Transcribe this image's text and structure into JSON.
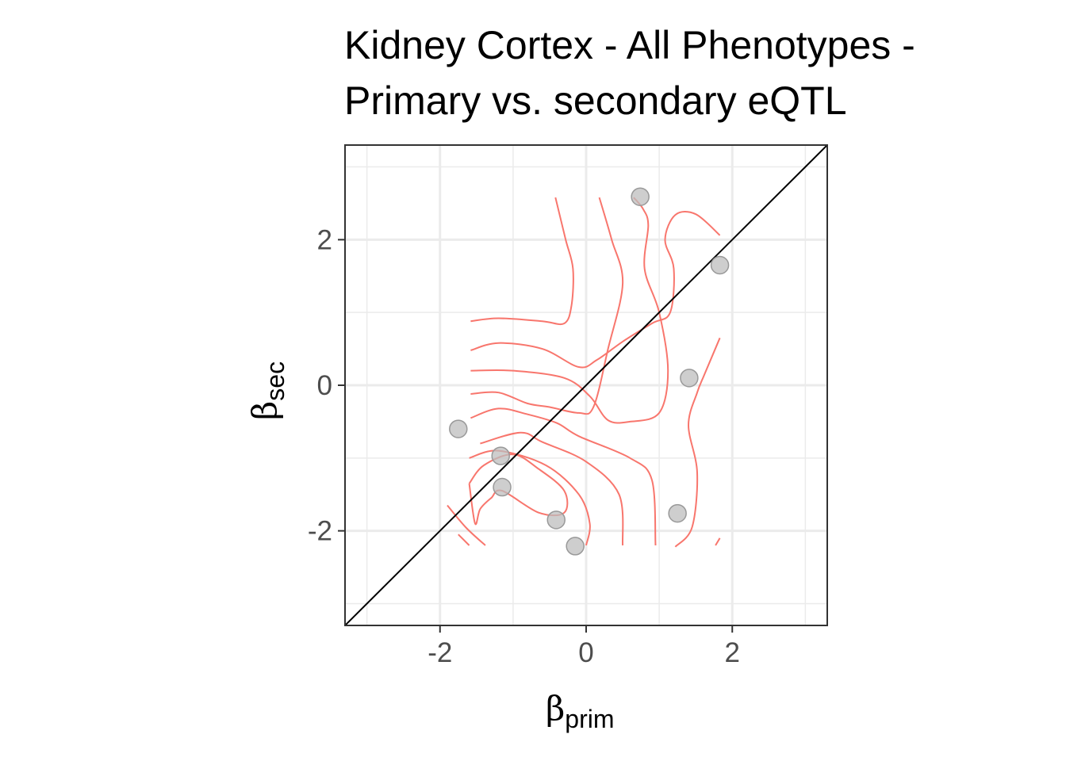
{
  "chart_data": {
    "type": "scatter",
    "title_lines": [
      "Kidney Cortex - All Phenotypes -",
      "Primary vs. secondary eQTL"
    ],
    "xlabel": {
      "symbol": "β",
      "sub": "prim"
    },
    "ylabel": {
      "symbol": "β",
      "sub": "sec"
    },
    "xlim": [
      -3.3,
      3.3
    ],
    "ylim": [
      -3.3,
      3.3
    ],
    "x_ticks": [
      -2,
      0,
      2
    ],
    "x_tick_labels": [
      "-2",
      "0",
      "2"
    ],
    "y_ticks": [
      -2,
      0,
      2
    ],
    "y_tick_labels": [
      "-2",
      "0",
      "2"
    ],
    "minor_grid": [
      -3,
      -1,
      1,
      3
    ],
    "grid": true,
    "reference_line": "y = x",
    "points": [
      {
        "x": 0.74,
        "y": 2.59
      },
      {
        "x": 1.83,
        "y": 1.65
      },
      {
        "x": 1.41,
        "y": 0.1
      },
      {
        "x": -1.75,
        "y": -0.6
      },
      {
        "x": -1.17,
        "y": -0.97
      },
      {
        "x": -1.15,
        "y": -1.4
      },
      {
        "x": -0.41,
        "y": -1.85
      },
      {
        "x": -0.15,
        "y": -2.21
      },
      {
        "x": 1.25,
        "y": -1.76
      }
    ],
    "density_contours": [
      [
        [
          -1.58,
          0.88
        ],
        [
          -1.2,
          0.92
        ],
        [
          -0.6,
          0.88
        ],
        [
          -0.3,
          0.85
        ],
        [
          -0.2,
          1.1
        ],
        [
          -0.18,
          1.6
        ],
        [
          -0.28,
          2.0
        ],
        [
          -0.42,
          2.58
        ]
      ],
      [
        [
          -1.58,
          0.48
        ],
        [
          -1.2,
          0.58
        ],
        [
          -0.6,
          0.5
        ],
        [
          -0.1,
          0.25
        ],
        [
          0.15,
          0.35
        ],
        [
          0.5,
          0.6
        ],
        [
          0.9,
          0.85
        ],
        [
          1.15,
          1.0
        ],
        [
          1.2,
          1.6
        ],
        [
          1.08,
          2.0
        ],
        [
          1.22,
          2.34
        ],
        [
          1.5,
          2.35
        ],
        [
          1.83,
          2.06
        ]
      ],
      [
        [
          -1.58,
          0.2
        ],
        [
          -1.0,
          0.2
        ],
        [
          -0.3,
          0.1
        ],
        [
          0.05,
          -0.15
        ],
        [
          0.3,
          -0.48
        ],
        [
          0.6,
          -0.5
        ],
        [
          1.0,
          -0.38
        ],
        [
          1.12,
          0.2
        ],
        [
          1.0,
          1.0
        ],
        [
          0.8,
          1.6
        ],
        [
          0.85,
          2.2
        ],
        [
          0.78,
          2.42
        ],
        [
          0.65,
          2.58
        ]
      ],
      [
        [
          -1.58,
          -0.12
        ],
        [
          -1.2,
          -0.1
        ],
        [
          -0.8,
          -0.25
        ],
        [
          -0.5,
          -0.3
        ],
        [
          -0.1,
          -0.38
        ],
        [
          0.1,
          -0.3
        ],
        [
          0.3,
          0.5
        ],
        [
          0.5,
          1.4
        ],
        [
          0.35,
          2.0
        ],
        [
          0.18,
          2.58
        ]
      ],
      [
        [
          -1.58,
          -0.45
        ],
        [
          -1.2,
          -0.32
        ],
        [
          -0.8,
          -0.4
        ],
        [
          -0.4,
          -0.52
        ],
        [
          -0.1,
          -0.7
        ],
        [
          0.6,
          -1.0
        ],
        [
          0.9,
          -1.3
        ],
        [
          0.95,
          -2.2
        ]
      ],
      [
        [
          -1.45,
          -0.8
        ],
        [
          -0.9,
          -0.65
        ],
        [
          -0.6,
          -0.78
        ],
        [
          0.0,
          -1.05
        ],
        [
          0.45,
          -1.5
        ],
        [
          0.5,
          -2.2
        ]
      ],
      [
        [
          -1.75,
          -2.05
        ],
        [
          -1.6,
          -2.2
        ]
      ],
      [
        [
          -1.9,
          -1.65
        ],
        [
          -1.65,
          -1.95
        ],
        [
          -1.38,
          -2.2
        ]
      ],
      [
        [
          -1.6,
          -1.0
        ],
        [
          -1.2,
          -0.9
        ],
        [
          -0.55,
          -1.1
        ],
        [
          -0.1,
          -1.5
        ],
        [
          0.05,
          -1.9
        ],
        [
          0.0,
          -2.2
        ]
      ],
      [
        [
          -1.6,
          -1.35
        ],
        [
          -1.4,
          -1.1
        ],
        [
          -1.0,
          -0.95
        ],
        [
          -0.65,
          -1.15
        ],
        [
          -0.3,
          -1.45
        ],
        [
          -0.3,
          -1.75
        ],
        [
          -0.65,
          -1.75
        ],
        [
          -1.15,
          -1.45
        ],
        [
          -1.3,
          -1.55
        ],
        [
          -1.45,
          -1.7
        ],
        [
          -1.52,
          -1.9
        ],
        [
          -1.6,
          -1.35
        ]
      ],
      [
        [
          1.22,
          -2.22
        ],
        [
          1.45,
          -1.95
        ],
        [
          1.52,
          -1.2
        ],
        [
          1.4,
          -0.55
        ],
        [
          1.52,
          -0.1
        ],
        [
          1.62,
          0.15
        ],
        [
          1.83,
          0.65
        ]
      ],
      [
        [
          1.77,
          -2.2
        ],
        [
          1.83,
          -2.1
        ]
      ]
    ],
    "colors": {
      "point_fill": "#bdbdbd",
      "point_stroke": "#999999",
      "contour": "#f8766d",
      "reference_line": "#000000",
      "grid": "#ebebeb",
      "panel_border": "#333333"
    }
  }
}
